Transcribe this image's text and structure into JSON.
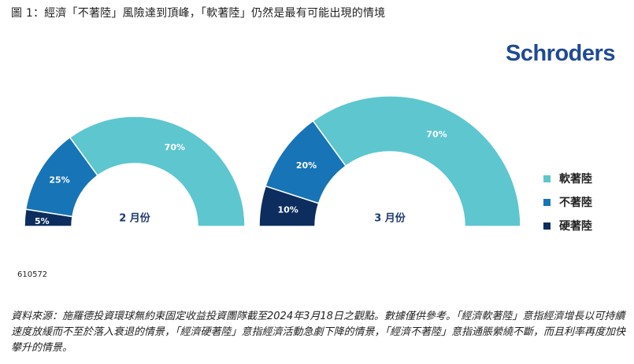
{
  "title": "圖 1：經濟「不著陸」風險達到頂峰，「軟著陸」仍然是最有可能出現的情境",
  "logo_text": "Schroders",
  "code": "610572",
  "footnote": "資料來源：施羅德投資環球無約束固定收益投資團隊截至2024年3月18日之觀點。數據僅供參考。「經濟軟著陸」意指經濟增長以可持續速度放緩而不至於落入衰退的情景，「經濟硬著陸」意指經濟活動急劇下降的情景，「經濟不著陸」意指通脹縈繞不斷，而且利率再度加快攀升的情景。",
  "colors": {
    "soft_landing": "#5ec6cf",
    "no_landing": "#1774b6",
    "hard_landing": "#0d2d5e",
    "logo": "#1f4a94"
  },
  "chart_data": [
    {
      "type": "pie",
      "shape": "half-donut",
      "center_label": "2 月份",
      "slices": [
        {
          "label": "硬著陸",
          "value": 5,
          "value_label": "5%",
          "color": "#0d2d5e"
        },
        {
          "label": "不著陸",
          "value": 25,
          "value_label": "25%",
          "color": "#1774b6"
        },
        {
          "label": "軟著陸",
          "value": 70,
          "value_label": "70%",
          "color": "#5ec6cf"
        }
      ]
    },
    {
      "type": "pie",
      "shape": "half-donut",
      "center_label": "3 月份",
      "slices": [
        {
          "label": "硬著陸",
          "value": 10,
          "value_label": "10%",
          "color": "#0d2d5e"
        },
        {
          "label": "不著陸",
          "value": 20,
          "value_label": "20%",
          "color": "#1774b6"
        },
        {
          "label": "軟著陸",
          "value": 70,
          "value_label": "70%",
          "color": "#5ec6cf"
        }
      ]
    }
  ],
  "legend": [
    {
      "label": "軟著陸",
      "color": "#5ec6cf"
    },
    {
      "label": "不著陸",
      "color": "#1774b6"
    },
    {
      "label": "硬著陸",
      "color": "#0d2d5e"
    }
  ]
}
